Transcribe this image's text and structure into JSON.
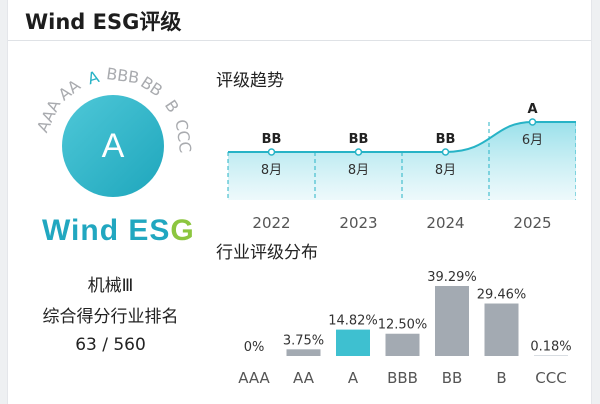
{
  "header": {
    "title": "Wind ESG评级"
  },
  "rating": {
    "current": "A",
    "scale": [
      "AAA",
      "AA",
      "A",
      "BBB",
      "BB",
      "B",
      "CCC"
    ],
    "brand_text": "Wind ESG",
    "brand_main": "Wind ES",
    "brand_accent": "G",
    "industry": "机械Ⅲ",
    "rank_label": "综合得分行业排名",
    "rank_value": "63 / 560",
    "colors": {
      "accent": "#27b3c6",
      "brand_green": "#8cc63f",
      "inactive": "#a9abaf"
    }
  },
  "trend": {
    "title": "评级趋势",
    "points": [
      {
        "year": "2022",
        "rating": "BB",
        "month": "8月"
      },
      {
        "year": "2023",
        "rating": "BB",
        "month": "8月"
      },
      {
        "year": "2024",
        "rating": "BB",
        "month": "8月"
      },
      {
        "year": "2025",
        "rating": "A",
        "month": "6月"
      }
    ]
  },
  "distribution": {
    "title": "行业评级分布",
    "bars": [
      {
        "label": "AAA",
        "pct": 0,
        "text": "0%",
        "highlight": false
      },
      {
        "label": "AA",
        "pct": 3.75,
        "text": "3.75%",
        "highlight": false
      },
      {
        "label": "A",
        "pct": 14.82,
        "text": "14.82%",
        "highlight": true
      },
      {
        "label": "BBB",
        "pct": 12.5,
        "text": "12.50%",
        "highlight": false
      },
      {
        "label": "BB",
        "pct": 39.29,
        "text": "39.29%",
        "highlight": false
      },
      {
        "label": "B",
        "pct": 29.46,
        "text": "29.46%",
        "highlight": false
      },
      {
        "label": "CCC",
        "pct": 0.18,
        "text": "0.18%",
        "highlight": false
      }
    ]
  }
}
